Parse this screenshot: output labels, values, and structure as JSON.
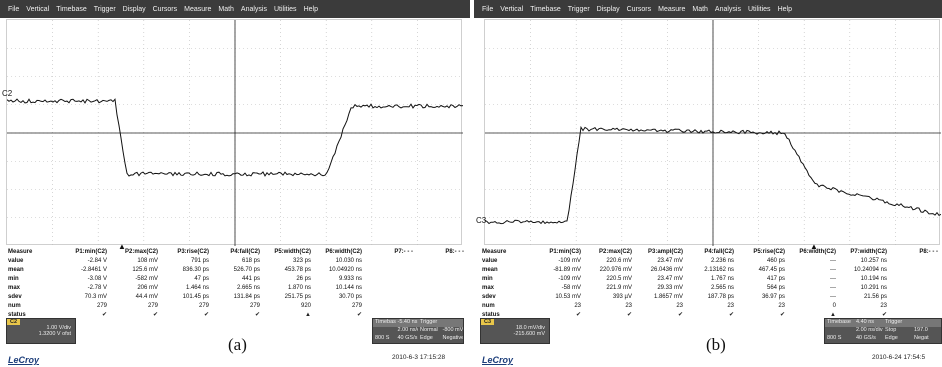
{
  "menu": [
    "File",
    "Vertical",
    "Timebase",
    "Trigger",
    "Display",
    "Cursors",
    "Measure",
    "Math",
    "Analysis",
    "Utilities",
    "Help"
  ],
  "panels": [
    {
      "id": "a",
      "caption": "(a)",
      "channel_label": "C2",
      "columns": [
        "Measure",
        "P1:min(C2)",
        "P2:max(C2)",
        "P3:rise(C2)",
        "P4:fall(C2)",
        "P5:width(C2)",
        "P6:width(C2)",
        "P7:- - -",
        "P8:- - -"
      ],
      "rows": [
        {
          "label": "value",
          "cells": [
            "-2.84 V",
            "108 mV",
            "791 ps",
            "618 ps",
            "323 ps",
            "10.030 ns",
            "",
            ""
          ]
        },
        {
          "label": "mean",
          "cells": [
            "-2.8461 V",
            "125.6 mV",
            "836.30 ps",
            "526.70 ps",
            "453.78 ps",
            "10.04920 ns",
            "",
            ""
          ]
        },
        {
          "label": "min",
          "cells": [
            "-3.08 V",
            "-582 mV",
            "47 ps",
            "441 ps",
            "26 ps",
            "9.933 ns",
            "",
            ""
          ]
        },
        {
          "label": "max",
          "cells": [
            "-2.78 V",
            "206 mV",
            "1.464 ns",
            "2.665 ns",
            "1.870 ns",
            "10.144 ns",
            "",
            ""
          ]
        },
        {
          "label": "sdev",
          "cells": [
            "70.3 mV",
            "44.4 mV",
            "101.45 ps",
            "131.84 ps",
            "251.75 ps",
            "30.70 ps",
            "",
            ""
          ]
        },
        {
          "label": "num",
          "cells": [
            "279",
            "279",
            "279",
            "279",
            "920",
            "279",
            "",
            ""
          ]
        },
        {
          "label": "status",
          "cells": [
            "✔",
            "✔",
            "✔",
            "✔",
            "▲",
            "✔",
            "",
            ""
          ]
        }
      ],
      "channel_box": {
        "tag": "C2",
        "line1": "1.00 V/div",
        "line2": "1.3200 V ofst"
      },
      "timebase": {
        "h1": "Timebase",
        "v1": "-5.40 ns",
        "h2": "Trigger",
        "v2": "",
        "r2a": "2.00 ns/div",
        "r2b": "Normal",
        "r2c": "-800 mV",
        "r3a": "800 S",
        "r3b": "40 GS/s",
        "r3c": "Edge",
        "r3d": "Negative"
      },
      "datetime": "2010-6-3 17:15:28",
      "brand": "LeCroy"
    },
    {
      "id": "b",
      "caption": "(b)",
      "channel_label": "C3",
      "columns": [
        "Measure",
        "P1:min(C3)",
        "P2:max(C2)",
        "P3:ampl(C2)",
        "P4:fall(C2)",
        "P5:rise(C2)",
        "P6:width(C2)",
        "P7:width(C2)",
        "P8:- - -"
      ],
      "rows": [
        {
          "label": "value",
          "cells": [
            "-109 mV",
            "220.6 mV",
            "23.47 mV",
            "2.236 ns",
            "460 ps",
            "---",
            "10.257 ns",
            ""
          ]
        },
        {
          "label": "mean",
          "cells": [
            "-81.89 mV",
            "220.976 mV",
            "26.0436 mV",
            "2.13162 ns",
            "467.45 ps",
            "---",
            "10.24094 ns",
            ""
          ]
        },
        {
          "label": "min",
          "cells": [
            "-109 mV",
            "220.5 mV",
            "23.47 mV",
            "1.767 ns",
            "417 ps",
            "---",
            "10.194 ns",
            ""
          ]
        },
        {
          "label": "max",
          "cells": [
            "-58 mV",
            "221.9 mV",
            "29.33 mV",
            "2.565 ns",
            "564 ps",
            "---",
            "10.291 ns",
            ""
          ]
        },
        {
          "label": "sdev",
          "cells": [
            "10.53 mV",
            "393 µV",
            "1.8657 mV",
            "187.78 ps",
            "36.97 ps",
            "---",
            "21.56 ps",
            ""
          ]
        },
        {
          "label": "num",
          "cells": [
            "23",
            "23",
            "23",
            "23",
            "23",
            "0",
            "23",
            ""
          ]
        },
        {
          "label": "status",
          "cells": [
            "✔",
            "✔",
            "✔",
            "✔",
            "✔",
            "▲",
            "✔",
            ""
          ]
        }
      ],
      "channel_box": {
        "tag": "C3",
        "line1": "18.0 mV/div",
        "line2": "-215.600 mV"
      },
      "timebase": {
        "h1": "Timebase",
        "v1": "4.40 ns",
        "h2": "Trigger",
        "v2": "",
        "r2a": "2.00 ns/div",
        "r2b": "Stop",
        "r2c": "197.0",
        "r3a": "800 S",
        "r3b": "40 GS/s",
        "r3c": "Edge",
        "r3d": "Negat"
      },
      "datetime": "2010-6-24 17:54:5",
      "brand": "LeCroy"
    }
  ]
}
